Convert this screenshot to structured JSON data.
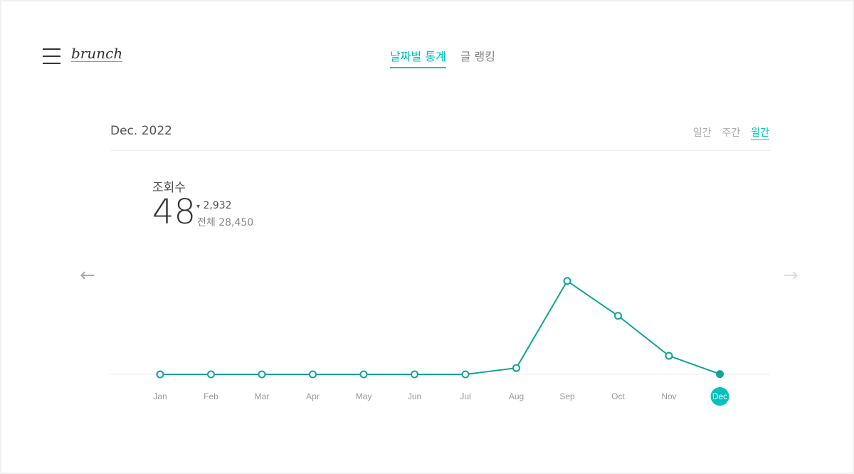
{
  "header": {
    "logo": "brunch",
    "tabs": [
      {
        "label": "날짜별 통계",
        "active": true
      },
      {
        "label": "글 랭킹",
        "active": false
      }
    ]
  },
  "period": "Dec. 2022",
  "ranges": [
    {
      "label": "일간"
    },
    {
      "label": "주간"
    },
    {
      "label": "월간",
      "active": true
    }
  ],
  "stats": {
    "label": "조회수",
    "value": "48",
    "change_icon": "▾",
    "change": "2,932",
    "total": "전체 28,450"
  },
  "nav": {
    "prev": "←",
    "next": "→"
  },
  "colors": {
    "accent": "#00c3bd",
    "line": "#0fa39a"
  },
  "chart_data": {
    "type": "line",
    "categories": [
      "Jan",
      "Feb",
      "Mar",
      "Apr",
      "May",
      "Jun",
      "Jul",
      "Aug",
      "Sep",
      "Oct",
      "Nov",
      "Dec"
    ],
    "values": [
      0,
      0,
      0,
      0,
      0,
      0,
      0,
      1020,
      15000,
      9400,
      2980,
      48
    ],
    "selected": "Dec",
    "ylim": [
      0,
      16000
    ]
  }
}
